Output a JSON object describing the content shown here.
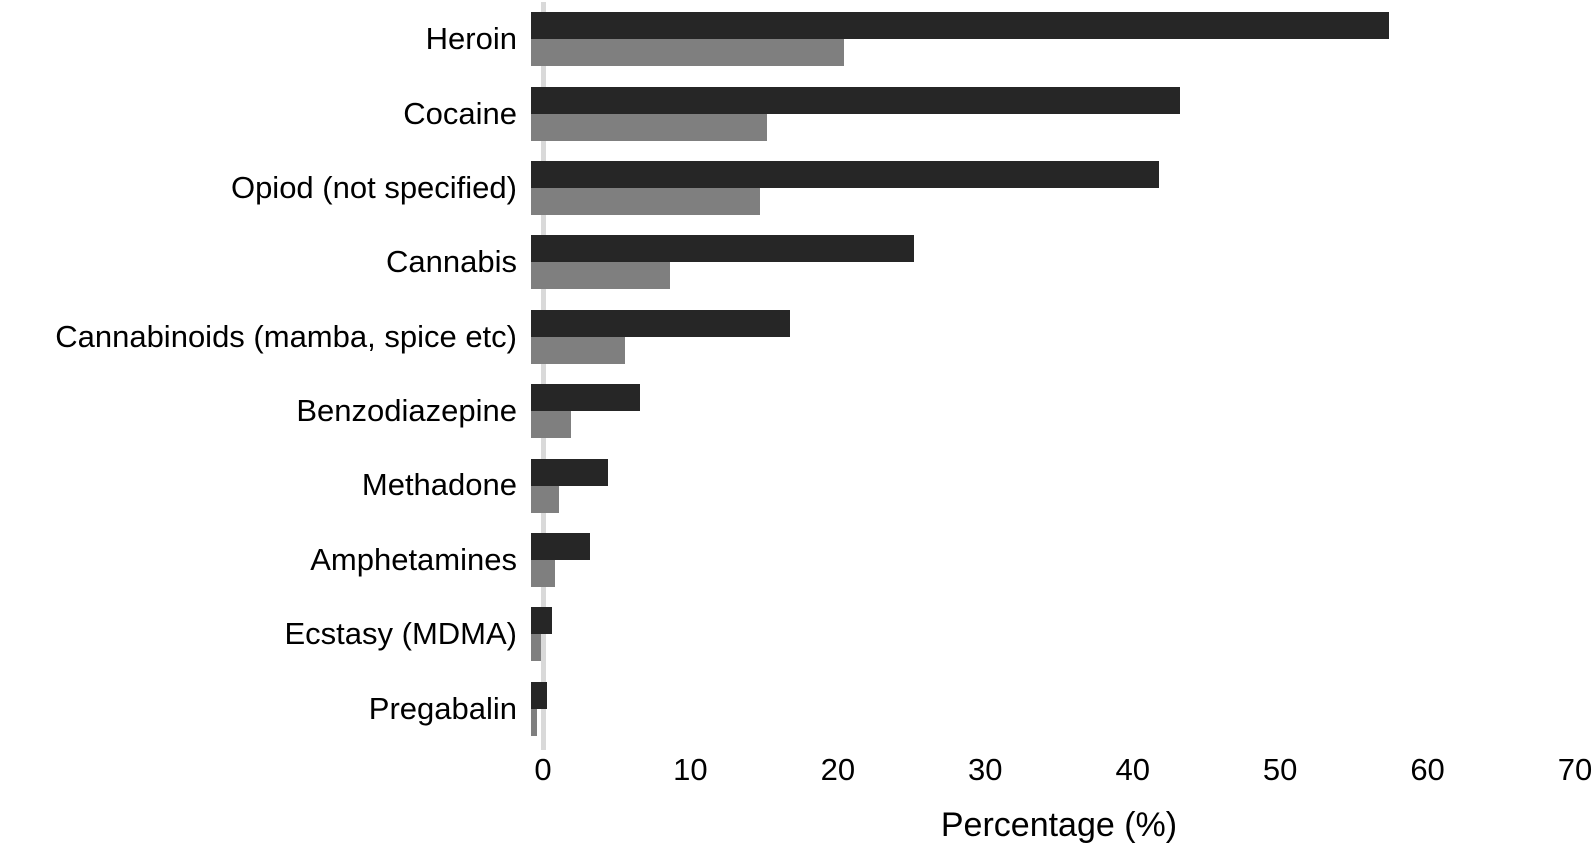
{
  "chart_data": {
    "type": "bar",
    "orientation": "horizontal",
    "title": "",
    "xlabel": "Percentage (%)",
    "ylabel": "",
    "xlim": [
      0,
      70
    ],
    "xticks": [
      0,
      10,
      20,
      30,
      40,
      50,
      60,
      70
    ],
    "grid": false,
    "legend": "none",
    "axis_line_color": "#d9d9d9",
    "categories": [
      "Heroin",
      "Cocaine",
      "Opiod (not specified)",
      "Cannabis",
      "Cannabinoids (mamba, spice etc)",
      "Benzodiazepine",
      "Methadone",
      "Amphetamines",
      "Ecstasy (MDMA)",
      "Pregabalin"
    ],
    "series": [
      {
        "name": "dark",
        "color": "#262626",
        "values": [
          58.2,
          44.0,
          42.6,
          26.0,
          17.6,
          7.4,
          5.2,
          4.0,
          1.4,
          1.1
        ]
      },
      {
        "name": "gray",
        "color": "#7f7f7f",
        "values": [
          21.2,
          16.0,
          15.5,
          9.4,
          6.4,
          2.7,
          1.9,
          1.6,
          0.7,
          0.4
        ]
      }
    ]
  }
}
